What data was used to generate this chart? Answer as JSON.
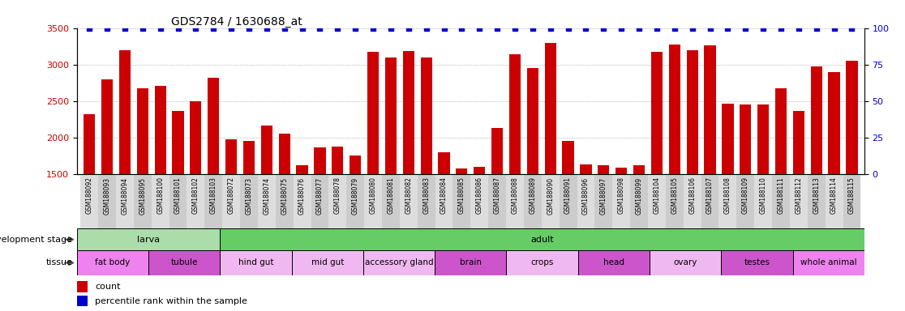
{
  "title": "GDS2784 / 1630688_at",
  "samples": [
    "GSM188092",
    "GSM188093",
    "GSM188094",
    "GSM188095",
    "GSM188100",
    "GSM188101",
    "GSM188102",
    "GSM188103",
    "GSM188072",
    "GSM188073",
    "GSM188074",
    "GSM188075",
    "GSM188076",
    "GSM188077",
    "GSM188078",
    "GSM188079",
    "GSM188080",
    "GSM188081",
    "GSM188082",
    "GSM188083",
    "GSM188084",
    "GSM188085",
    "GSM188086",
    "GSM188087",
    "GSM188088",
    "GSM188089",
    "GSM188090",
    "GSM188091",
    "GSM188096",
    "GSM188097",
    "GSM188098",
    "GSM188099",
    "GSM188104",
    "GSM188105",
    "GSM188106",
    "GSM188107",
    "GSM188108",
    "GSM188109",
    "GSM188110",
    "GSM188111",
    "GSM188112",
    "GSM188113",
    "GSM188114",
    "GSM188115"
  ],
  "counts": [
    2320,
    2800,
    3200,
    2670,
    2710,
    2360,
    2500,
    2820,
    1980,
    1950,
    2160,
    2050,
    1620,
    1870,
    1880,
    1750,
    3170,
    3100,
    3190,
    3100,
    1800,
    1580,
    1600,
    2130,
    3140,
    2950,
    3300,
    1950,
    1630,
    1620,
    1590,
    1620,
    3170,
    3270,
    3200,
    3260,
    2470,
    2450,
    2450,
    2680,
    2360,
    2970,
    2900,
    3050
  ],
  "percentiles": [
    100,
    100,
    100,
    100,
    100,
    100,
    100,
    100,
    100,
    100,
    100,
    100,
    100,
    100,
    100,
    100,
    100,
    100,
    100,
    100,
    100,
    100,
    100,
    100,
    100,
    100,
    100,
    100,
    100,
    100,
    100,
    100,
    100,
    100,
    100,
    100,
    100,
    100,
    100,
    100,
    100,
    100,
    100,
    100
  ],
  "ylim_left": [
    1500,
    3500
  ],
  "ylim_right": [
    0,
    100
  ],
  "yticks_left": [
    1500,
    2000,
    2500,
    3000,
    3500
  ],
  "yticks_right": [
    0,
    25,
    50,
    75,
    100
  ],
  "bar_color": "#cc0000",
  "percentile_color": "#0000cc",
  "dev_stage_groups": [
    {
      "label": "larva",
      "start": 0,
      "end": 8,
      "color": "#aaddaa"
    },
    {
      "label": "adult",
      "start": 8,
      "end": 44,
      "color": "#66cc66"
    }
  ],
  "tissue_groups": [
    {
      "label": "fat body",
      "start": 0,
      "end": 4,
      "color": "#ee82ee"
    },
    {
      "label": "tubule",
      "start": 4,
      "end": 8,
      "color": "#cc55cc"
    },
    {
      "label": "hind gut",
      "start": 8,
      "end": 12,
      "color": "#f0b8f0"
    },
    {
      "label": "mid gut",
      "start": 12,
      "end": 16,
      "color": "#f0b8f0"
    },
    {
      "label": "accessory gland",
      "start": 16,
      "end": 20,
      "color": "#f0b8f0"
    },
    {
      "label": "brain",
      "start": 20,
      "end": 24,
      "color": "#cc55cc"
    },
    {
      "label": "crops",
      "start": 24,
      "end": 28,
      "color": "#f0b8f0"
    },
    {
      "label": "head",
      "start": 28,
      "end": 32,
      "color": "#cc55cc"
    },
    {
      "label": "ovary",
      "start": 32,
      "end": 36,
      "color": "#f0b8f0"
    },
    {
      "label": "testes",
      "start": 36,
      "end": 40,
      "color": "#cc55cc"
    },
    {
      "label": "whole animal",
      "start": 40,
      "end": 44,
      "color": "#ee82ee"
    }
  ],
  "label_dev_stage": "development stage",
  "label_tissue": "tissue",
  "legend_count": "count",
  "legend_percentile": "percentile rank within the sample",
  "background_color": "#ffffff",
  "grid_color": "#888888",
  "tick_label_bg": "#dddddd"
}
